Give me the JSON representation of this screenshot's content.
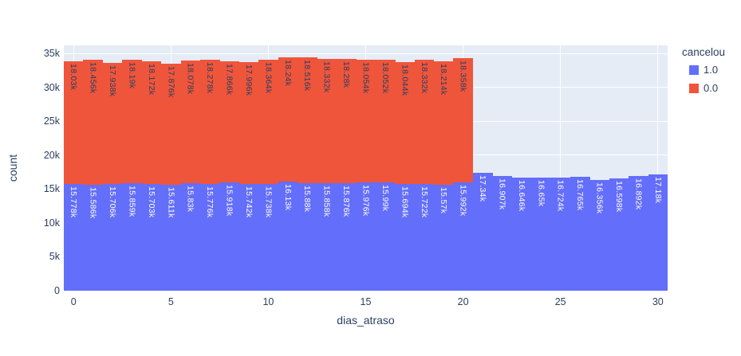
{
  "colors": {
    "bar_blue": "#636EFA",
    "bar_red": "#EF553B",
    "plot_bg": "#E5ECF6",
    "grid": "#FFFFFF",
    "axis_text": "#2a3f5f",
    "label_on_blue": "#FFFFFF",
    "label_on_red": "#2a3f5f"
  },
  "legend": {
    "title": "cancelou",
    "items": [
      {
        "label": "1.0",
        "color": "#636EFA"
      },
      {
        "label": "0.0",
        "color": "#EF553B"
      }
    ]
  },
  "axes": {
    "x": {
      "title": "dias_atraso",
      "tick_labels": [
        "0",
        "5",
        "10",
        "15",
        "20",
        "25",
        "30"
      ],
      "tick_values": [
        0,
        5,
        10,
        15,
        20,
        25,
        30
      ]
    },
    "y": {
      "title": "count",
      "tick_labels": [
        "0",
        "5k",
        "10k",
        "15k",
        "20k",
        "25k",
        "30k",
        "35k"
      ],
      "tick_values": [
        0,
        5000,
        10000,
        15000,
        20000,
        25000,
        30000,
        35000
      ]
    }
  },
  "chart_data": {
    "type": "bar",
    "stacked": true,
    "title": "",
    "xlabel": "dias_atraso",
    "ylabel": "count",
    "x": [
      0,
      1,
      2,
      3,
      4,
      5,
      6,
      7,
      8,
      9,
      10,
      11,
      12,
      13,
      14,
      15,
      16,
      17,
      18,
      19,
      20,
      21,
      22,
      23,
      24,
      25,
      26,
      27,
      28,
      29,
      30
    ],
    "xlim": [
      -0.5,
      30.5
    ],
    "ylim": [
      0,
      36200
    ],
    "grid": true,
    "legend_position": "right",
    "series": [
      {
        "name": "1.0",
        "color": "#636EFA",
        "values": [
          15778,
          15586,
          15706,
          15859,
          15703,
          15611,
          15830,
          15776,
          15918,
          15742,
          15738,
          16130,
          15880,
          15858,
          15876,
          15976,
          15990,
          15694,
          15722,
          15570,
          15992,
          17340,
          16907,
          16646,
          16650,
          16724,
          16765,
          16356,
          16598,
          16892,
          17180
        ],
        "labels": [
          "15.778k",
          "15.586k",
          "15.706k",
          "15.859k",
          "15.703k",
          "15.611k",
          "15.83k",
          "15.776k",
          "15.918k",
          "15.742k",
          "15.738k",
          "16.13k",
          "15.88k",
          "15.858k",
          "15.876k",
          "15.976k",
          "15.99k",
          "15.694k",
          "15.722k",
          "15.57k",
          "15.992k",
          "17.34k",
          "16.907k",
          "16.646k",
          "16.65k",
          "16.724k",
          "16.765k",
          "16.356k",
          "16.598k",
          "16.892k",
          "17.18k"
        ]
      },
      {
        "name": "0.0",
        "color": "#EF553B",
        "values": [
          18030,
          18456,
          17938,
          18190,
          18172,
          17876,
          18078,
          18278,
          17866,
          17996,
          18364,
          18240,
          18516,
          18332,
          18280,
          18054,
          18052,
          18044,
          18332,
          18214,
          18358,
          0,
          0,
          0,
          0,
          0,
          0,
          0,
          0,
          0,
          0
        ],
        "labels": [
          "18.03k",
          "18.456k",
          "17.938k",
          "18.19k",
          "18.172k",
          "17.876k",
          "18.078k",
          "18.278k",
          "17.866k",
          "17.996k",
          "18.364k",
          "18.24k",
          "18.516k",
          "18.332k",
          "18.28k",
          "18.054k",
          "18.052k",
          "18.044k",
          "18.332k",
          "18.214k",
          "18.358k",
          "",
          "",
          "",
          "",
          "",
          "",
          "",
          "",
          "",
          ""
        ]
      }
    ]
  }
}
